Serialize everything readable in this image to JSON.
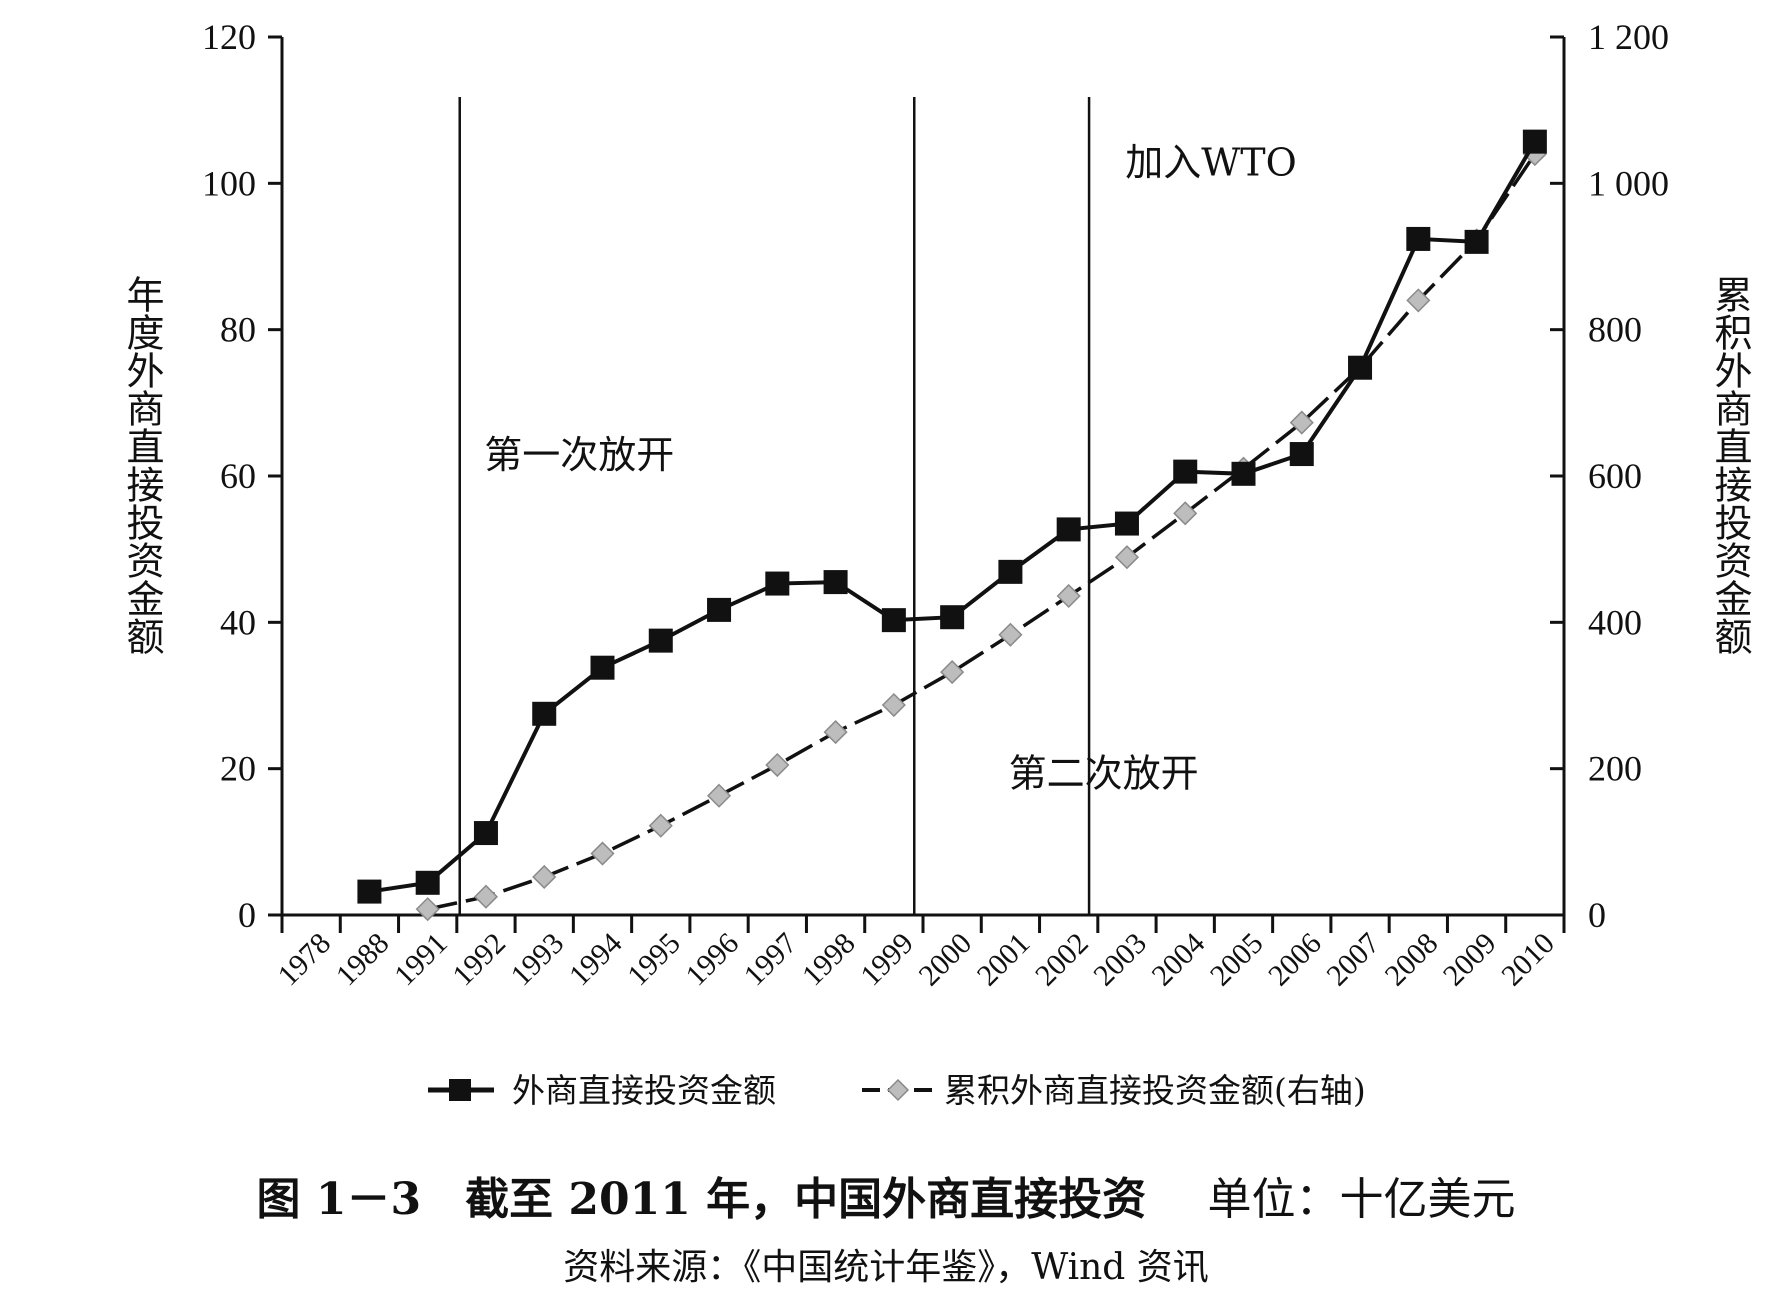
{
  "chart_data": {
    "type": "line",
    "categories": [
      "1978",
      "1988",
      "1991",
      "1992",
      "1993",
      "1994",
      "1995",
      "1996",
      "1997",
      "1998",
      "1999",
      "2000",
      "2001",
      "2002",
      "2003",
      "2004",
      "2005",
      "2006",
      "2007",
      "2008",
      "2009",
      "2010"
    ],
    "series": [
      {
        "name": "外商直接投资金额",
        "axis": "left",
        "marker": "square",
        "line_style": "solid",
        "color": "#111111",
        "values": [
          null,
          3.2,
          4.4,
          11.2,
          27.5,
          33.8,
          37.5,
          41.7,
          45.3,
          45.5,
          40.3,
          40.7,
          46.9,
          52.7,
          53.5,
          60.6,
          60.3,
          63.0,
          74.8,
          92.4,
          92.0,
          105.7
        ]
      },
      {
        "name": "累积外商直接投资金额(右轴)",
        "axis": "right",
        "marker": "diamond",
        "line_style": "dashed",
        "color": "#111111",
        "marker_color": "#bdbdbd",
        "values": [
          null,
          null,
          8,
          25,
          52,
          84,
          122,
          163,
          205,
          250,
          287,
          332,
          383,
          436,
          489,
          549,
          610,
          673,
          748,
          840,
          922,
          1040
        ]
      }
    ],
    "y_left": {
      "label": "年度外商直接投资金额",
      "ticks": [
        "0",
        "20",
        "40",
        "60",
        "80",
        "100",
        "120"
      ],
      "min": 0,
      "max": 120
    },
    "y_right": {
      "label": "累积外商直接投资金额",
      "ticks": [
        "0",
        "200",
        "400",
        "600",
        "800",
        "1 000",
        "1 200"
      ],
      "min": 0,
      "max": 1200
    },
    "vertical_markers": [
      {
        "after_category": "1991",
        "fraction": 0.05
      },
      {
        "after_category": "1998",
        "fraction": 0.85
      },
      {
        "after_category": "2001",
        "fraction": 0.85
      }
    ],
    "annotations": [
      {
        "text": "第一次放开",
        "x_category": "1993",
        "y_value": 63
      },
      {
        "text": "第二次放开",
        "x_category": "2002",
        "y_value": 19.5
      },
      {
        "text": "加入WTO",
        "x_category": "2004",
        "y_value": 103
      }
    ],
    "legend_placement": "bottom",
    "grid": false
  },
  "figure": {
    "title_main": "图 1－3　截至 2011 年，中国外商直接投资",
    "title_unit": "单位：十亿美元",
    "source": "资料来源：《中国统计年鉴》，Wind 资讯"
  }
}
